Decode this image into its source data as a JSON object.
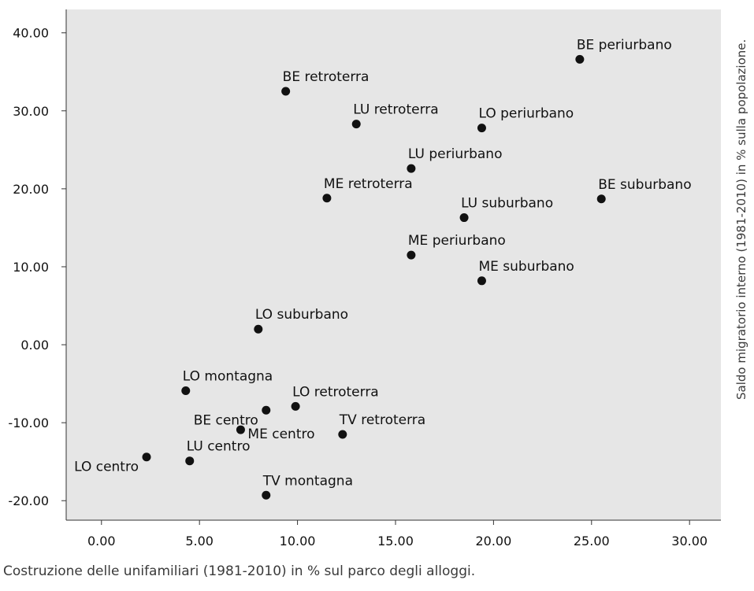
{
  "chart_data": {
    "type": "scatter",
    "title": "",
    "xlabel": "Costruzione delle unifamiliari (1981-2010) in % sul parco degli alloggi.",
    "ylabel": "Saldo migratorio interno (1981-2010) in % sulla popolazione.",
    "xlim": [
      -1.8,
      31.6
    ],
    "ylim": [
      -22.5,
      43
    ],
    "xticks": [
      0,
      5,
      10,
      15,
      20,
      25,
      30
    ],
    "xtick_labels": [
      "0.00",
      "5.00",
      "10.00",
      "15.00",
      "20.00",
      "25.00",
      "30.00"
    ],
    "yticks": [
      40,
      30,
      20,
      10,
      0,
      -10,
      -20
    ],
    "ytick_labels": [
      "40.00",
      "30.00",
      "20.00",
      "10.00",
      "0.00",
      "-10.00",
      "-20.00"
    ],
    "grid": false,
    "legend": "none",
    "colors": {
      "plot_bg": "#e6e6e6",
      "point": "#111111",
      "text": "#111111"
    },
    "points": [
      {
        "label": "BE periurbano",
        "x": 24.4,
        "y": 36.6,
        "pos": "above"
      },
      {
        "label": "BE retroterra",
        "x": 9.4,
        "y": 32.5,
        "pos": "above"
      },
      {
        "label": "LU retroterra",
        "x": 13.0,
        "y": 28.3,
        "pos": "above"
      },
      {
        "label": "LO periurbano",
        "x": 19.4,
        "y": 27.8,
        "pos": "above"
      },
      {
        "label": "LU periurbano",
        "x": 15.8,
        "y": 22.6,
        "pos": "above"
      },
      {
        "label": "ME retroterra",
        "x": 11.5,
        "y": 18.8,
        "pos": "above"
      },
      {
        "label": "BE suburbano",
        "x": 25.5,
        "y": 18.7,
        "pos": "above"
      },
      {
        "label": "LU suburbano",
        "x": 18.5,
        "y": 16.3,
        "pos": "above"
      },
      {
        "label": "ME periurbano",
        "x": 15.8,
        "y": 11.5,
        "pos": "above"
      },
      {
        "label": "ME suburbano",
        "x": 19.4,
        "y": 8.2,
        "pos": "above"
      },
      {
        "label": "LO suburbano",
        "x": 8.0,
        "y": 2.0,
        "pos": "above"
      },
      {
        "label": "LO montagna",
        "x": 4.3,
        "y": -5.9,
        "pos": "above"
      },
      {
        "label": "LO retroterra",
        "x": 9.9,
        "y": -7.9,
        "pos": "above"
      },
      {
        "label": "BE centro",
        "x": 8.4,
        "y": -8.4,
        "pos": "left"
      },
      {
        "label": "TV retroterra",
        "x": 12.3,
        "y": -11.5,
        "pos": "above"
      },
      {
        "label": "ME centro",
        "x": 7.1,
        "y": -10.9,
        "pos": "right"
      },
      {
        "label": "LU centro",
        "x": 4.5,
        "y": -14.9,
        "pos": "above"
      },
      {
        "label": "LO centro",
        "x": 2.3,
        "y": -14.4,
        "pos": "left"
      },
      {
        "label": "TV montagna",
        "x": 8.4,
        "y": -19.3,
        "pos": "above"
      }
    ]
  }
}
